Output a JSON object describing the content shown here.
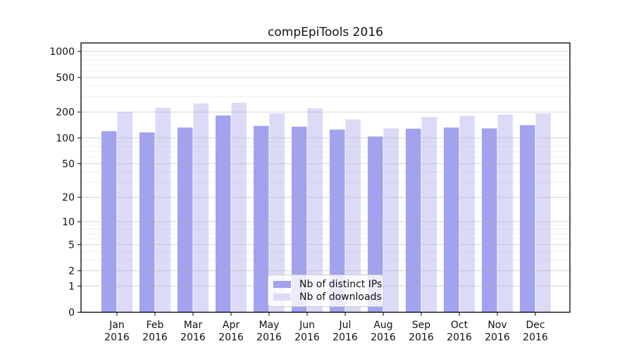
{
  "chart_data": {
    "type": "bar",
    "title": "compEpiTools 2016",
    "categories": [
      "Jan",
      "Feb",
      "Mar",
      "Apr",
      "May",
      "Jun",
      "Jul",
      "Aug",
      "Sep",
      "Oct",
      "Nov",
      "Dec"
    ],
    "x_year": "2016",
    "series": [
      {
        "name": "Nb of distinct IPs",
        "color": "#a2a2f0",
        "values": [
          120,
          116,
          132,
          182,
          138,
          135,
          125,
          104,
          128,
          132,
          129,
          141
        ]
      },
      {
        "name": "Nb of downloads",
        "color": "#dbdbf8",
        "values": [
          200,
          224,
          251,
          255,
          193,
          220,
          164,
          129,
          175,
          181,
          187,
          193
        ]
      }
    ],
    "y_scale": "log1p",
    "y_ticks": [
      0,
      1,
      2,
      5,
      10,
      20,
      50,
      100,
      200,
      500,
      1000
    ],
    "y_minor_ticks": [
      3,
      4,
      6,
      7,
      8,
      9,
      30,
      40,
      60,
      70,
      80,
      90,
      300,
      400,
      600,
      700,
      800,
      900
    ],
    "ylim": [
      0,
      1250
    ],
    "xlabel": "",
    "ylabel": "",
    "grid": "major+minor horizontal",
    "legend_position": "lower center"
  }
}
